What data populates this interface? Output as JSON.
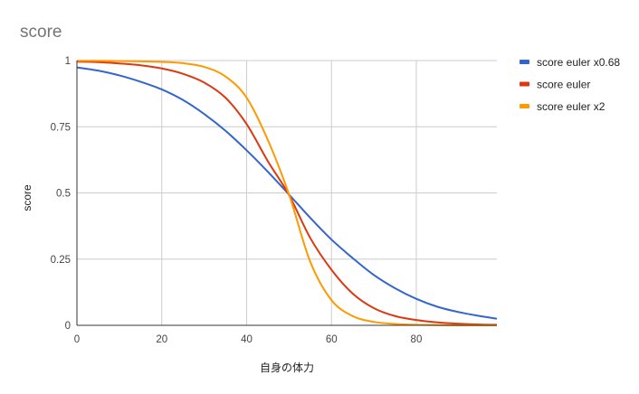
{
  "chart_data": {
    "type": "line",
    "title": "score",
    "xlabel": "自身の体力",
    "ylabel": "score",
    "xlim": [
      0,
      99
    ],
    "ylim": [
      0,
      1
    ],
    "x_ticks": [
      "0",
      "20",
      "40",
      "60",
      "80"
    ],
    "y_ticks": [
      "0",
      "0.25",
      "0.5",
      "0.75",
      "1"
    ],
    "grid": true,
    "legend_position": "right",
    "x": [
      0,
      5,
      10,
      15,
      20,
      25,
      30,
      35,
      40,
      45,
      50,
      55,
      60,
      65,
      70,
      75,
      80,
      85,
      90,
      95,
      99
    ],
    "series": [
      {
        "name": "score euler x0.68",
        "color": "#3366cc",
        "values": [
          0.974,
          0.962,
          0.944,
          0.92,
          0.891,
          0.851,
          0.798,
          0.735,
          0.661,
          0.58,
          0.494,
          0.406,
          0.324,
          0.254,
          0.19,
          0.14,
          0.1,
          0.07,
          0.05,
          0.035,
          0.025
        ]
      },
      {
        "name": "score euler",
        "color": "#dc3912",
        "values": [
          0.996,
          0.994,
          0.989,
          0.982,
          0.97,
          0.95,
          0.917,
          0.86,
          0.76,
          0.62,
          0.492,
          0.33,
          0.21,
          0.12,
          0.065,
          0.035,
          0.02,
          0.011,
          0.006,
          0.003,
          0.002
        ]
      },
      {
        "name": "score euler x2",
        "color": "#ff9900",
        "values": [
          0.999,
          0.999,
          0.998,
          0.997,
          0.995,
          0.99,
          0.976,
          0.94,
          0.86,
          0.7,
          0.494,
          0.24,
          0.095,
          0.035,
          0.013,
          0.005,
          0.002,
          0.001,
          0.0,
          0.0,
          0.0
        ]
      }
    ]
  }
}
